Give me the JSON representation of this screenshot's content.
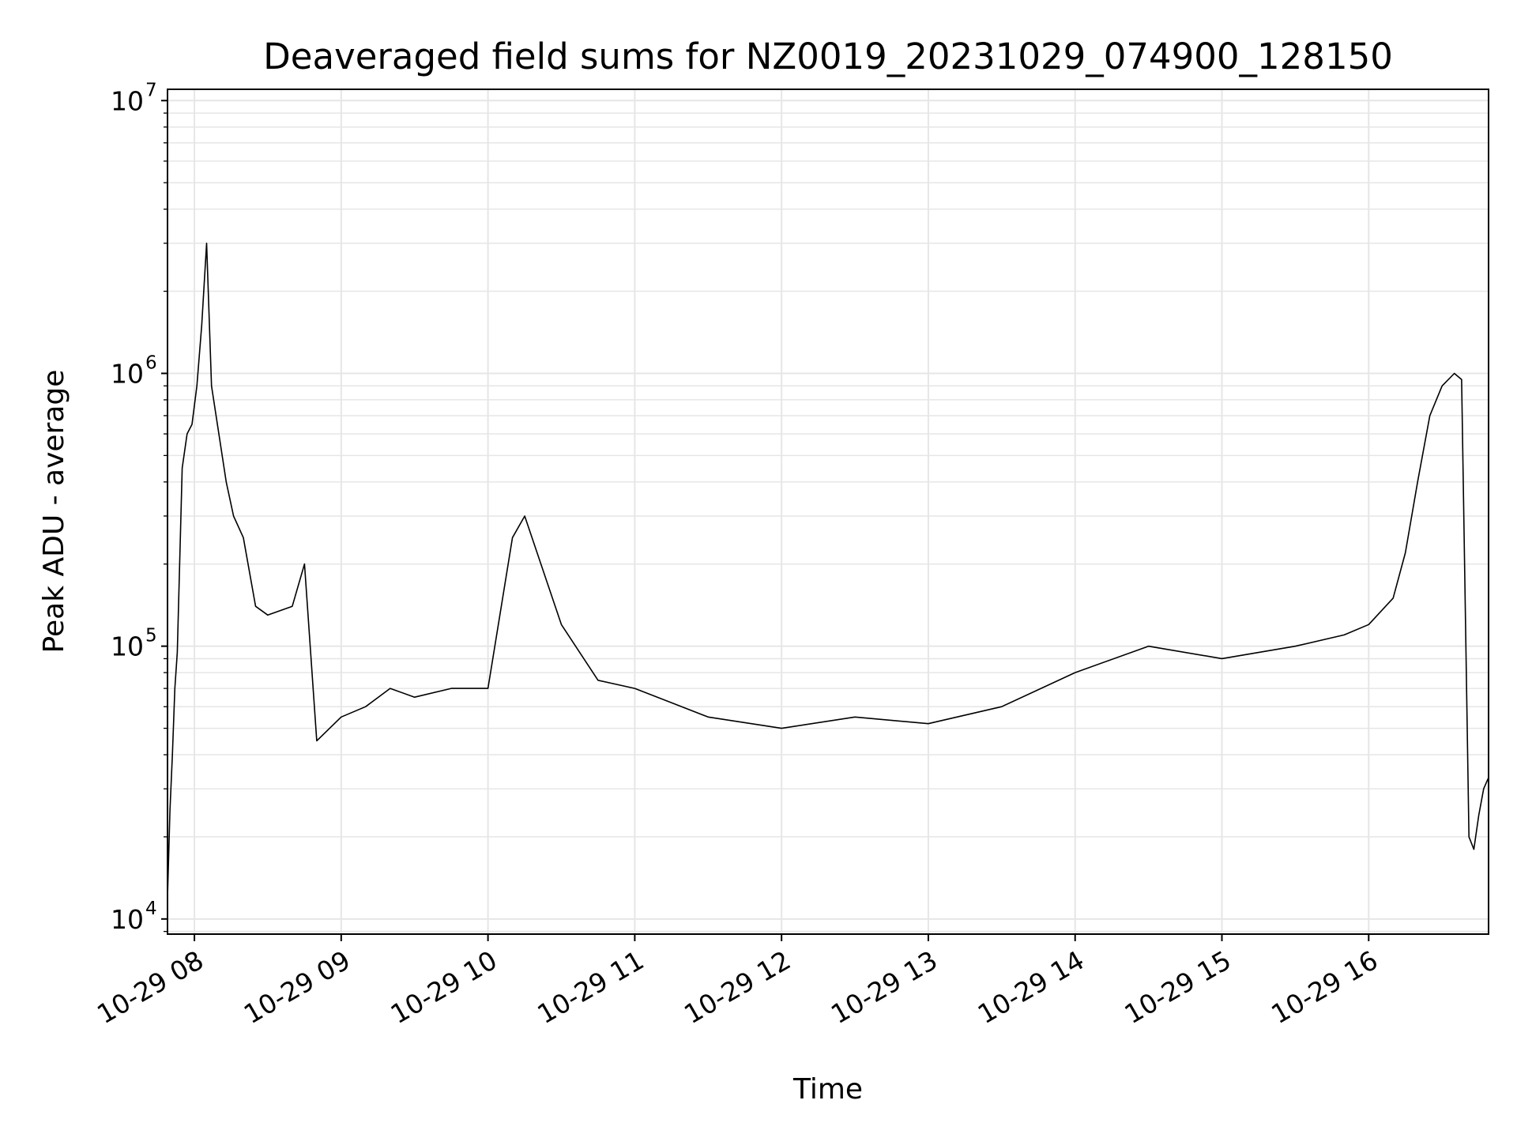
{
  "chart_data": {
    "type": "line",
    "title": "Deaveraged field sums for NZ0019_20231029_074900_128150",
    "xlabel": "Time",
    "ylabel": "Peak ADU - average",
    "yscale": "log",
    "ylim": [
      8800,
      11000000
    ],
    "xlim": [
      "2023-10-29 07:49",
      "2023-10-29 16:49"
    ],
    "grid": true,
    "line_color": "#000000",
    "grid_color": "#e6e6e6",
    "x_ticks": [
      {
        "value": "2023-10-29 08:00",
        "label": "10-29 08"
      },
      {
        "value": "2023-10-29 09:00",
        "label": "10-29 09"
      },
      {
        "value": "2023-10-29 10:00",
        "label": "10-29 10"
      },
      {
        "value": "2023-10-29 11:00",
        "label": "10-29 11"
      },
      {
        "value": "2023-10-29 12:00",
        "label": "10-29 12"
      },
      {
        "value": "2023-10-29 13:00",
        "label": "10-29 13"
      },
      {
        "value": "2023-10-29 14:00",
        "label": "10-29 14"
      },
      {
        "value": "2023-10-29 15:00",
        "label": "10-29 15"
      },
      {
        "value": "2023-10-29 16:00",
        "label": "10-29 16"
      }
    ],
    "y_ticks": [
      {
        "value": 10000,
        "base": "10",
        "exp": "4"
      },
      {
        "value": 100000,
        "base": "10",
        "exp": "5"
      },
      {
        "value": 1000000,
        "base": "10",
        "exp": "6"
      },
      {
        "value": 10000000,
        "base": "10",
        "exp": "7"
      }
    ],
    "series": [
      {
        "x": [
          "2023-10-29 07:49",
          "2023-10-29 07:50",
          "2023-10-29 07:51",
          "2023-10-29 07:52",
          "2023-10-29 07:53",
          "2023-10-29 07:55",
          "2023-10-29 07:57",
          "2023-10-29 07:59",
          "2023-10-29 08:01",
          "2023-10-29 08:03",
          "2023-10-29 08:05",
          "2023-10-29 08:07",
          "2023-10-29 08:10",
          "2023-10-29 08:13",
          "2023-10-29 08:16",
          "2023-10-29 08:20",
          "2023-10-29 08:25",
          "2023-10-29 08:30",
          "2023-10-29 08:40",
          "2023-10-29 08:45",
          "2023-10-29 08:50",
          "2023-10-29 09:00",
          "2023-10-29 09:10",
          "2023-10-29 09:20",
          "2023-10-29 09:30",
          "2023-10-29 09:45",
          "2023-10-29 10:00",
          "2023-10-29 10:10",
          "2023-10-29 10:15",
          "2023-10-29 10:30",
          "2023-10-29 10:45",
          "2023-10-29 11:00",
          "2023-10-29 11:30",
          "2023-10-29 12:00",
          "2023-10-29 12:30",
          "2023-10-29 13:00",
          "2023-10-29 13:30",
          "2023-10-29 14:00",
          "2023-10-29 14:30",
          "2023-10-29 15:00",
          "2023-10-29 15:30",
          "2023-10-29 15:50",
          "2023-10-29 16:00",
          "2023-10-29 16:10",
          "2023-10-29 16:15",
          "2023-10-29 16:20",
          "2023-10-29 16:25",
          "2023-10-29 16:30",
          "2023-10-29 16:35",
          "2023-10-29 16:38",
          "2023-10-29 16:41",
          "2023-10-29 16:43",
          "2023-10-29 16:45",
          "2023-10-29 16:47",
          "2023-10-29 16:49"
        ],
        "y": [
          12000,
          25000,
          40000,
          70000,
          95000,
          450000,
          600000,
          650000,
          900000,
          1500000,
          3000000,
          900000,
          600000,
          400000,
          300000,
          250000,
          140000,
          130000,
          140000,
          200000,
          45000,
          55000,
          60000,
          70000,
          65000,
          70000,
          70000,
          250000,
          300000,
          120000,
          75000,
          70000,
          55000,
          50000,
          55000,
          52000,
          60000,
          80000,
          100000,
          90000,
          100000,
          110000,
          120000,
          150000,
          220000,
          400000,
          700000,
          900000,
          1000000,
          950000,
          20000,
          18000,
          24000,
          30000,
          33000
        ]
      }
    ]
  }
}
